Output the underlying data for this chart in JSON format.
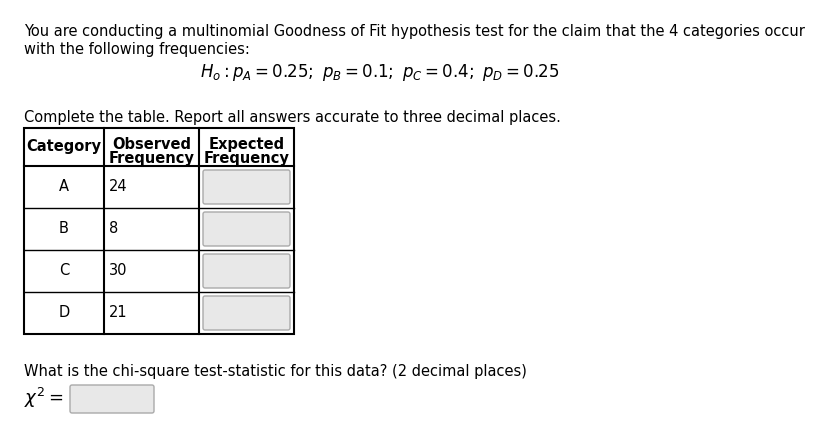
{
  "title_line1": "You are conducting a multinomial Goodness of Fit hypothesis test for the claim that the 4 categories occur",
  "title_line2": "with the following frequencies:",
  "table_instruction": "Complete the table. Report all answers accurate to three decimal places.",
  "col_headers_line1": [
    "Category",
    "Observed",
    "Expected"
  ],
  "col_headers_line2": [
    "",
    "Frequency",
    "Frequency"
  ],
  "categories": [
    "A",
    "B",
    "C",
    "D"
  ],
  "observed": [
    24,
    8,
    30,
    21
  ],
  "chi_sq_label": "What is the chi-square test-statistic for this data? (2 decimal places)",
  "background_color": "#ffffff",
  "text_color": "#000000"
}
